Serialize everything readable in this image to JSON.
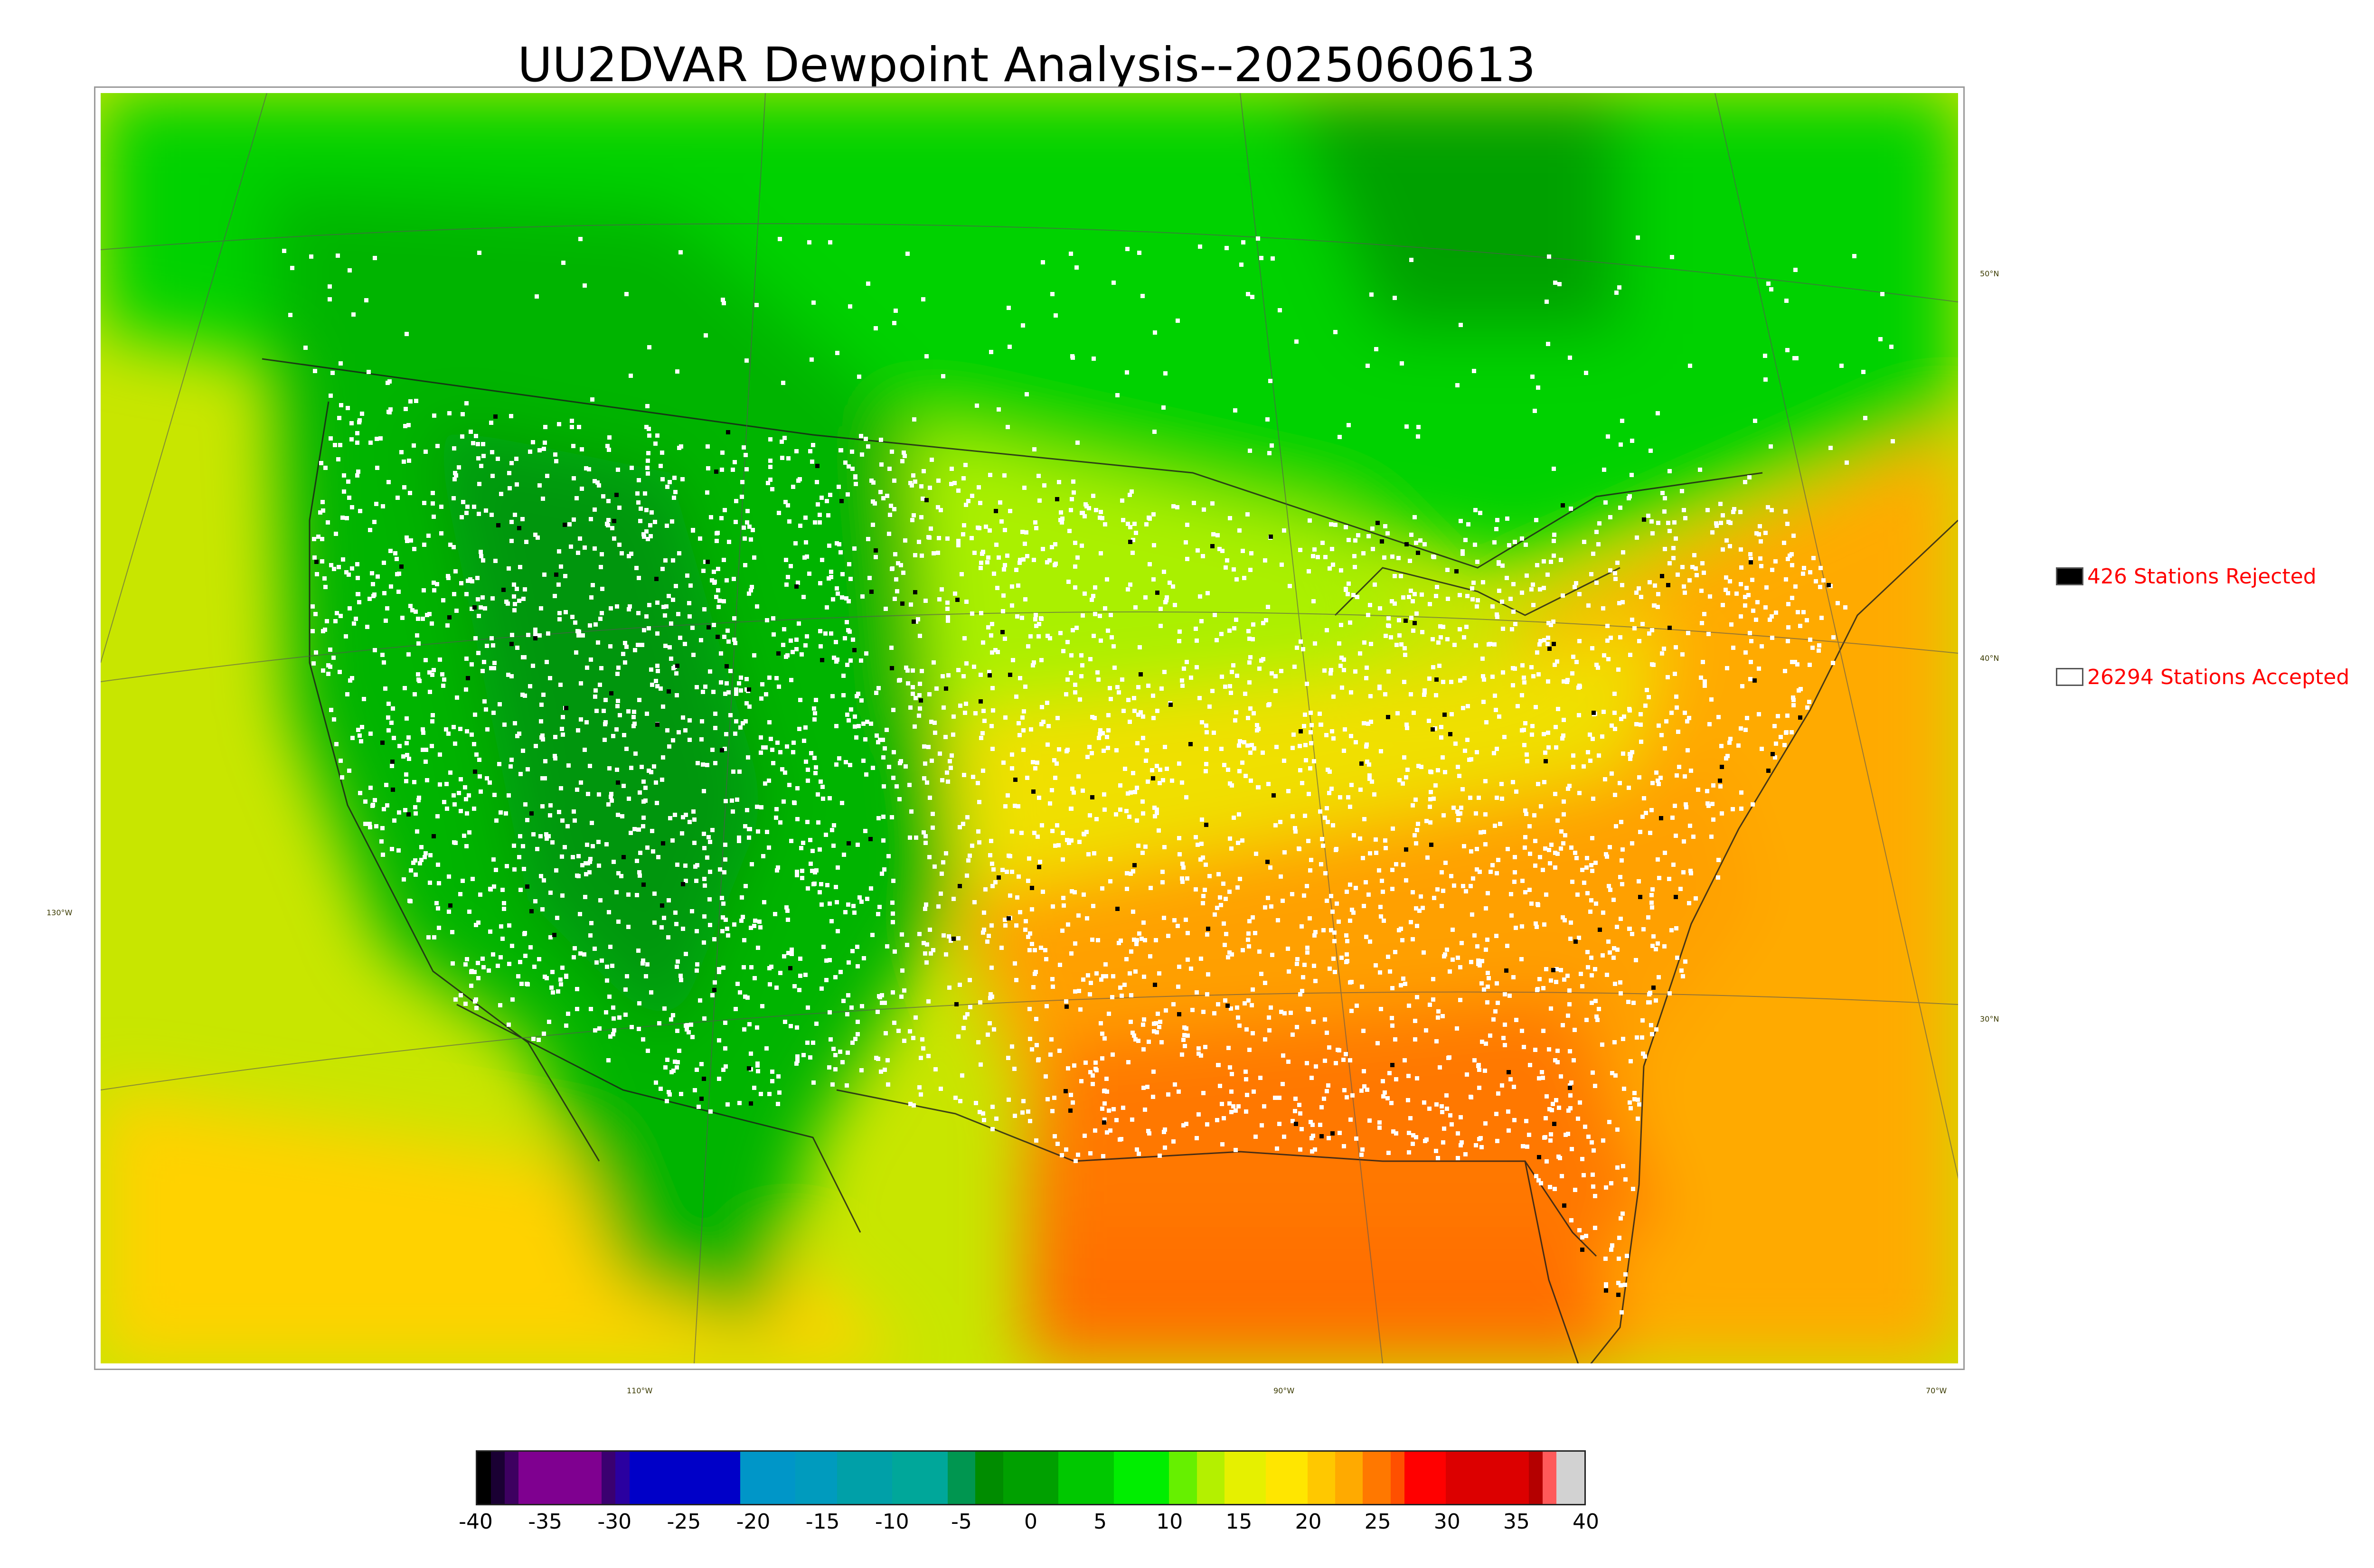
{
  "title": "UU2DVAR Dewpoint Analysis--2025060613",
  "legend": {
    "rejected": {
      "label": "426 Stations Rejected",
      "swatch_color": "#000000",
      "text_color": "#ff0000"
    },
    "accepted": {
      "label": "26294 Stations Accepted",
      "swatch_color": "#ffffff",
      "text_color": "#ff0000"
    }
  },
  "graticule": {
    "lat_labels": [
      "50°N",
      "40°N",
      "30°N",
      "130°W"
    ],
    "lon_labels": [
      "110°W",
      "90°W",
      "70°W"
    ]
  },
  "colorbar": {
    "ticks": [
      "-40",
      "-35",
      "-30",
      "-25",
      "-20",
      "-15",
      "-10",
      "-5",
      "0",
      "5",
      "10",
      "15",
      "20",
      "25",
      "30",
      "35",
      "40"
    ],
    "range": [
      -40,
      40
    ],
    "segments": [
      {
        "from": -40,
        "to": -39,
        "color": "#000000"
      },
      {
        "from": -39,
        "to": -38,
        "color": "#1a0033"
      },
      {
        "from": -38,
        "to": -37,
        "color": "#3d0060"
      },
      {
        "from": -37,
        "to": -31,
        "color": "#7f0090"
      },
      {
        "from": -31,
        "to": -30,
        "color": "#3a0070"
      },
      {
        "from": -30,
        "to": -29,
        "color": "#2a00a0"
      },
      {
        "from": -29,
        "to": -21,
        "color": "#0000c8"
      },
      {
        "from": -21,
        "to": -17,
        "color": "#0096c8"
      },
      {
        "from": -17,
        "to": -14,
        "color": "#009bbe"
      },
      {
        "from": -14,
        "to": -10,
        "color": "#00a0a8"
      },
      {
        "from": -10,
        "to": -6,
        "color": "#00a79a"
      },
      {
        "from": -6,
        "to": -4,
        "color": "#009650"
      },
      {
        "from": -4,
        "to": -2,
        "color": "#008c00"
      },
      {
        "from": -2,
        "to": 2,
        "color": "#00a000"
      },
      {
        "from": 2,
        "to": 6,
        "color": "#00c800"
      },
      {
        "from": 6,
        "to": 10,
        "color": "#00ee00"
      },
      {
        "from": 10,
        "to": 12,
        "color": "#66f000"
      },
      {
        "from": 12,
        "to": 14,
        "color": "#b4f000"
      },
      {
        "from": 14,
        "to": 17,
        "color": "#e6f000"
      },
      {
        "from": 17,
        "to": 20,
        "color": "#ffe600"
      },
      {
        "from": 20,
        "to": 22,
        "color": "#ffc800"
      },
      {
        "from": 22,
        "to": 24,
        "color": "#ffaa00"
      },
      {
        "from": 24,
        "to": 26,
        "color": "#ff7800"
      },
      {
        "from": 26,
        "to": 27,
        "color": "#ff5000"
      },
      {
        "from": 27,
        "to": 30,
        "color": "#ff0000"
      },
      {
        "from": 30,
        "to": 36,
        "color": "#dc0000"
      },
      {
        "from": 36,
        "to": 37,
        "color": "#b40000"
      },
      {
        "from": 37,
        "to": 38,
        "color": "#ff5a5a"
      },
      {
        "from": 38,
        "to": 40,
        "color": "#d2d2d2"
      }
    ]
  },
  "field_colors": {
    "ocean_pacific": "#c8e600",
    "ocean_atlantic": "#ffb400",
    "gulf": "#ff6400",
    "canada": "#00d200",
    "canada_dark": "#00a800",
    "west": "#00b000",
    "mountain_dark": "#009600",
    "plains": "#aaf000",
    "midwest": "#f0e600",
    "southeast": "#ffa000",
    "deep_south": "#ff7800"
  }
}
